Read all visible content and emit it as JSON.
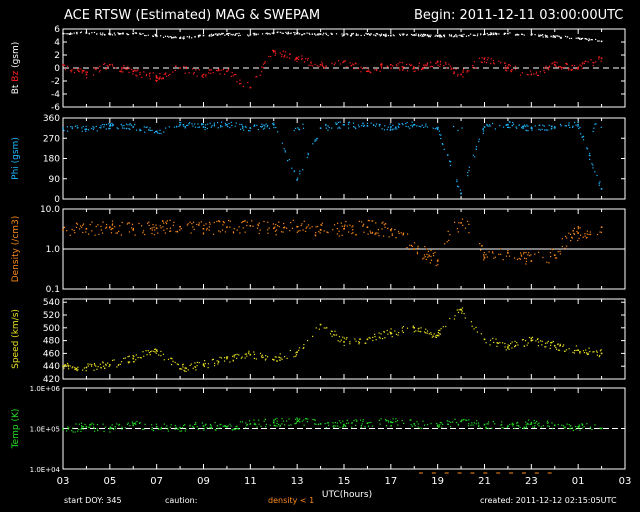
{
  "header": {
    "title": "ACE RTSW (Estimated) MAG & SWEPAM",
    "begin": "Begin: 2011-12-11 03:00:00UTC"
  },
  "footer": {
    "start_doy": "start DOY: 345",
    "caution": "caution:",
    "density_note": "density < 1",
    "created": "created: 2011-12-12 02:15:05UTC"
  },
  "colors": {
    "bt": "#ffffff",
    "bz": "#ff2020",
    "phi": "#20b8ff",
    "density": "#ff8c1a",
    "speed": "#e8e020",
    "temp": "#22dd22"
  },
  "chart_data": [
    {
      "type": "scatter",
      "panel": "mag",
      "ylabel_parts": [
        "Bt",
        "Bz",
        "(gsm)"
      ],
      "ylim": [
        -6,
        6
      ],
      "yticks": [
        "6",
        "4",
        "2",
        "0",
        "-2",
        "-4",
        "-6"
      ],
      "ref_line": 0,
      "x_label": "UTC(hours)",
      "xticks": [
        "03",
        "05",
        "07",
        "09",
        "11",
        "13",
        "15",
        "17",
        "19",
        "21",
        "23",
        "01",
        "03"
      ],
      "series": [
        {
          "name": "Bt",
          "x": [
            3,
            4,
            5,
            6,
            7,
            8,
            9,
            10,
            11,
            12,
            13,
            14,
            15,
            16,
            17,
            18,
            19,
            20,
            21,
            22,
            23,
            24,
            25,
            26
          ],
          "y": [
            5.3,
            5.4,
            5.2,
            5.3,
            5.0,
            4.6,
            5.0,
            5.2,
            5.1,
            5.4,
            5.3,
            5.2,
            5.1,
            5.2,
            5.0,
            5.1,
            4.9,
            5.0,
            5.2,
            5.3,
            5.1,
            4.8,
            4.6,
            4.1
          ]
        },
        {
          "name": "Bz",
          "x": [
            3,
            4,
            5,
            6,
            7,
            8,
            9,
            10,
            11,
            12,
            13,
            14,
            15,
            16,
            17,
            18,
            19,
            20,
            21,
            22,
            23,
            24,
            25,
            26
          ],
          "y": [
            0.5,
            -1.0,
            0.5,
            -0.5,
            -1.5,
            0.0,
            -1.0,
            -0.5,
            -3.0,
            2.5,
            1.5,
            0.5,
            1.0,
            -0.5,
            0.5,
            0.0,
            1.0,
            -1.0,
            1.5,
            0.0,
            -1.0,
            0.5,
            0.0,
            1.5
          ]
        }
      ]
    },
    {
      "type": "scatter",
      "panel": "phi",
      "ylabel": "Phi (gsm)",
      "ylim": [
        0,
        360
      ],
      "yticks": [
        "360",
        "270",
        "180",
        "90",
        "0"
      ],
      "series": [
        {
          "name": "Phi",
          "x": [
            3,
            4,
            5,
            6,
            7,
            8,
            9,
            10,
            11,
            12,
            13,
            14,
            15,
            16,
            17,
            18,
            19,
            20,
            21,
            22,
            23,
            24,
            25,
            26
          ],
          "y": [
            315,
            310,
            325,
            320,
            300,
            330,
            320,
            330,
            315,
            330,
            85,
            315,
            330,
            325,
            320,
            330,
            310,
            25,
            320,
            330,
            315,
            320,
            330,
            45
          ]
        }
      ]
    },
    {
      "type": "scatter",
      "panel": "density",
      "ylabel": "Density (/cm3)",
      "ylim": [
        0.1,
        10.0
      ],
      "scale": "log",
      "yticks": [
        "10.0",
        "1.0",
        "0.1"
      ],
      "ref_line": 1.0,
      "series": [
        {
          "name": "Density",
          "x": [
            3,
            4,
            5,
            6,
            7,
            8,
            9,
            10,
            11,
            12,
            13,
            14,
            15,
            16,
            17,
            18,
            19,
            20,
            21,
            22,
            23,
            24,
            25,
            26
          ],
          "y": [
            3.0,
            3.2,
            3.5,
            3.0,
            3.3,
            3.6,
            3.2,
            3.5,
            3.8,
            3.3,
            3.6,
            3.0,
            3.2,
            3.5,
            3.0,
            1.0,
            0.5,
            4.5,
            0.6,
            0.8,
            0.5,
            0.7,
            2.5,
            3.5
          ]
        }
      ]
    },
    {
      "type": "scatter",
      "panel": "speed",
      "ylabel": "Speed (km/s)",
      "ylim": [
        420,
        545
      ],
      "yticks": [
        "540",
        "520",
        "500",
        "480",
        "460",
        "440",
        "420"
      ],
      "series": [
        {
          "name": "Speed",
          "x": [
            3,
            4,
            5,
            6,
            7,
            8,
            9,
            10,
            11,
            12,
            13,
            14,
            15,
            16,
            17,
            18,
            19,
            20,
            21,
            22,
            23,
            24,
            25,
            26
          ],
          "y": [
            440,
            438,
            442,
            452,
            465,
            436,
            442,
            452,
            458,
            450,
            462,
            505,
            478,
            482,
            492,
            500,
            488,
            528,
            482,
            470,
            480,
            472,
            465,
            460
          ]
        }
      ]
    },
    {
      "type": "scatter",
      "panel": "temp",
      "ylabel": "Temp (K)",
      "ylim": [
        10000,
        1000000
      ],
      "scale": "log",
      "yticks": [
        "1.0E+06",
        "1.0E+05",
        "1.0E+04"
      ],
      "ref_line": 100000,
      "series": [
        {
          "name": "Temp",
          "x": [
            3,
            4,
            5,
            6,
            7,
            8,
            9,
            10,
            11,
            12,
            13,
            14,
            15,
            16,
            17,
            18,
            19,
            20,
            21,
            22,
            23,
            24,
            25,
            26
          ],
          "y": [
            95000,
            110000,
            100000,
            120000,
            110000,
            105000,
            115000,
            110000,
            130000,
            140000,
            150000,
            130000,
            125000,
            135000,
            145000,
            130000,
            120000,
            150000,
            125000,
            115000,
            130000,
            120000,
            110000,
            100000
          ]
        }
      ]
    }
  ]
}
